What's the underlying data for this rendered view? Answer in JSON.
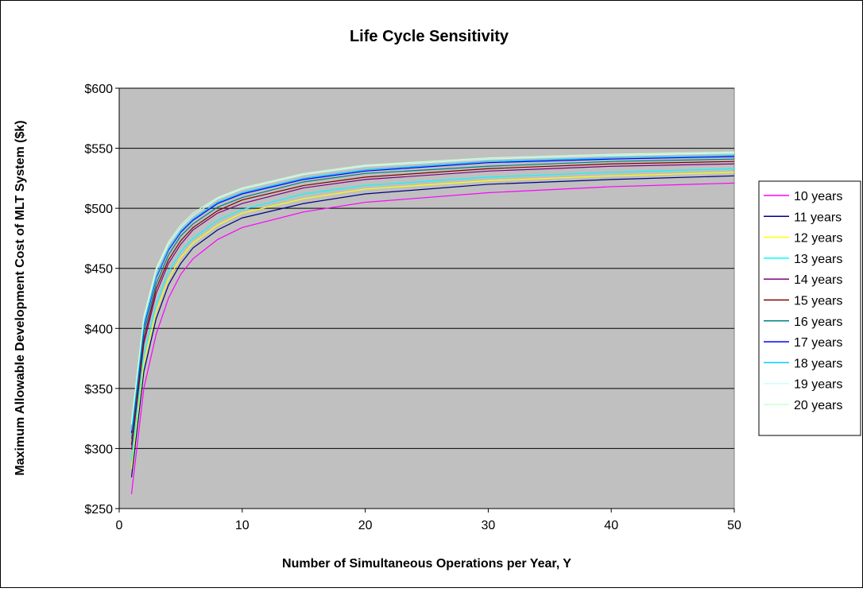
{
  "chart_data": {
    "type": "line",
    "title": "Life Cycle Sensitivity",
    "xlabel": "Number of Simultaneous Operations per Year, Y",
    "ylabel": "Maximum Allowable Development Cost of MLT System ($k)",
    "x": [
      1,
      2,
      3,
      4,
      5,
      6,
      8,
      10,
      15,
      20,
      30,
      40,
      50
    ],
    "xlim": [
      0,
      50
    ],
    "xticks": [
      0,
      10,
      20,
      30,
      40,
      50
    ],
    "ylim": [
      250,
      600
    ],
    "yticks": [
      {
        "value": 250,
        "label": "$250"
      },
      {
        "value": 300,
        "label": "$300"
      },
      {
        "value": 350,
        "label": "$350"
      },
      {
        "value": 400,
        "label": "$400"
      },
      {
        "value": 450,
        "label": "$450"
      },
      {
        "value": 500,
        "label": "$500"
      },
      {
        "value": 550,
        "label": "$550"
      },
      {
        "value": 600,
        "label": "$600"
      }
    ],
    "grid": true,
    "legend": "right",
    "series": [
      {
        "name": "10 years",
        "color": "#ff00ff",
        "values": [
          262,
          350,
          395,
          425,
          445,
          458,
          474,
          484,
          497,
          505,
          513,
          518,
          521
        ]
      },
      {
        "name": "11 years",
        "color": "#000080",
        "values": [
          276,
          364,
          408,
          436,
          454,
          467,
          482,
          492,
          504,
          512,
          520,
          524,
          527
        ]
      },
      {
        "name": "12 years",
        "color": "#ffff00",
        "values": [
          283,
          371,
          414,
          441,
          459,
          471,
          486,
          496,
          508,
          516,
          523,
          527,
          530
        ]
      },
      {
        "name": "13 years",
        "color": "#00ffff",
        "values": [
          290,
          378,
          420,
          447,
          464,
          475,
          490,
          499,
          512,
          519,
          526,
          530,
          533
        ]
      },
      {
        "name": "14 years",
        "color": "#800080",
        "values": [
          299,
          387,
          429,
          454,
          470,
          482,
          496,
          504,
          517,
          524,
          531,
          535,
          537
        ]
      },
      {
        "name": "15 years",
        "color": "#800000",
        "values": [
          303,
          391,
          433,
          457,
          473,
          484,
          498,
          507,
          519,
          526,
          533,
          537,
          539
        ]
      },
      {
        "name": "16 years",
        "color": "#008080",
        "values": [
          308,
          396,
          437,
          461,
          477,
          487,
          501,
          509,
          522,
          529,
          535,
          539,
          541
        ]
      },
      {
        "name": "17 years",
        "color": "#0000ff",
        "values": [
          313,
          401,
          442,
          465,
          480,
          490,
          504,
          512,
          524,
          531,
          538,
          541,
          543
        ]
      },
      {
        "name": "18 years",
        "color": "#00ccff",
        "values": [
          315,
          403,
          443,
          466,
          481,
          491,
          505,
          513,
          525,
          532,
          539,
          542,
          544
        ]
      },
      {
        "name": "19 years",
        "color": "#ccffff",
        "values": [
          320,
          408,
          448,
          470,
          484,
          494,
          508,
          516,
          528,
          535,
          541,
          544,
          546
        ]
      },
      {
        "name": "20 years",
        "color": "#ccffcc",
        "values": [
          322,
          410,
          450,
          472,
          486,
          496,
          509,
          517,
          529,
          536,
          542,
          545,
          547
        ]
      }
    ]
  }
}
